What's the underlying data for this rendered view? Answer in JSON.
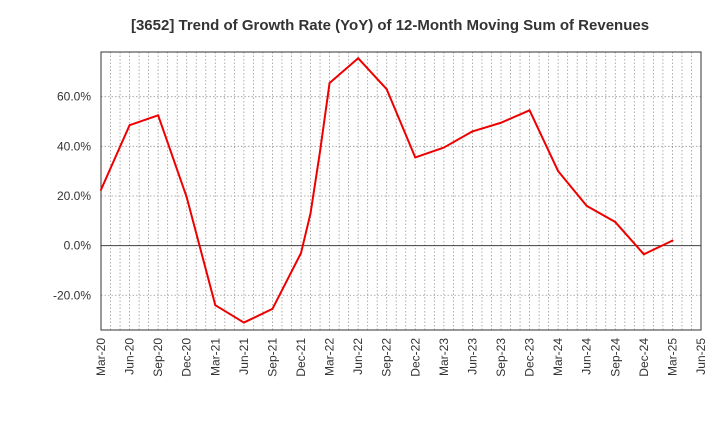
{
  "chart_data": {
    "type": "line",
    "title": "[3652]  Trend of Growth Rate (YoY) of 12-Month Moving Sum of Revenues",
    "xlabel": "",
    "ylabel": "",
    "x_tick_labels": [
      "Mar-20",
      "Jun-20",
      "Sep-20",
      "Dec-20",
      "Mar-21",
      "Jun-21",
      "Sep-21",
      "Dec-21",
      "Mar-22",
      "Jun-22",
      "Sep-22",
      "Dec-22",
      "Mar-23",
      "Jun-23",
      "Sep-23",
      "Dec-23",
      "Mar-24",
      "Jun-24",
      "Sep-24",
      "Dec-24",
      "Mar-25",
      "Jun-25"
    ],
    "y_ticks": [
      -20,
      0,
      20,
      40,
      60
    ],
    "y_tick_labels": [
      "-20.0%",
      "0.0%",
      "20.0%",
      "40.0%",
      "60.0%"
    ],
    "ylim": [
      -34,
      78
    ],
    "x_months": [
      "2020-03",
      "2020-04",
      "2020-05",
      "2020-06",
      "2020-07",
      "2020-08",
      "2020-09",
      "2020-10",
      "2020-11",
      "2020-12",
      "2021-01",
      "2021-02",
      "2021-03",
      "2021-04",
      "2021-05",
      "2021-06",
      "2021-07",
      "2021-08",
      "2021-09",
      "2021-10",
      "2021-11",
      "2021-12",
      "2022-01",
      "2022-02",
      "2022-03",
      "2022-04",
      "2022-05",
      "2022-06",
      "2022-07",
      "2022-08",
      "2022-09",
      "2022-10",
      "2022-11",
      "2022-12",
      "2023-01",
      "2023-02",
      "2023-03",
      "2023-04",
      "2023-05",
      "2023-06",
      "2023-07",
      "2023-08",
      "2023-09",
      "2023-10",
      "2023-11",
      "2023-12",
      "2024-01",
      "2024-02",
      "2024-03",
      "2024-04",
      "2024-05",
      "2024-06",
      "2024-07",
      "2024-08",
      "2024-09",
      "2024-10",
      "2024-11",
      "2024-12",
      "2025-01",
      "2025-02",
      "2025-03",
      "2025-04",
      "2025-05",
      "2025-06"
    ],
    "series": [
      {
        "name": "",
        "color": "#ee0000",
        "x": [
          "2020-03",
          "2020-06",
          "2020-09",
          "2020-12",
          "2021-03",
          "2021-06",
          "2021-09",
          "2021-12",
          "2022-01",
          "2022-02",
          "2022-03",
          "2022-06",
          "2022-09",
          "2022-12",
          "2023-03",
          "2023-06",
          "2023-09",
          "2023-12",
          "2024-03",
          "2024-06",
          "2024-09",
          "2024-12",
          "2025-03"
        ],
        "values": [
          22.5,
          48.5,
          52.5,
          19.5,
          -24,
          -31,
          -25.5,
          -3,
          13,
          38,
          65.5,
          75.5,
          63,
          35.5,
          39.5,
          46,
          49.5,
          54.5,
          30,
          16,
          9.5,
          -3.5,
          2
        ]
      }
    ],
    "grid": true,
    "grid_style": "dotted",
    "legend": "none"
  }
}
